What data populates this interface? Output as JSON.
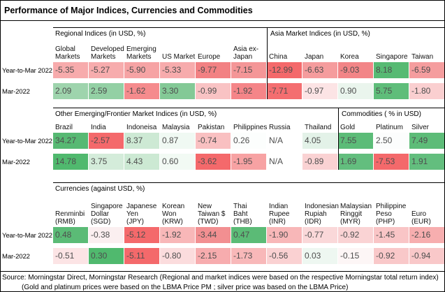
{
  "title": "Performance of Major Indices, Currencies and Commodities",
  "row_labels": {
    "ytd": "Year-to-Mar 2022",
    "mar": "Mar-2022"
  },
  "heatmap_palette": {
    "strong_negative": "#F4696B",
    "neutral": "#FCFCFF",
    "strong_positive": "#57B973"
  },
  "chart_data": [
    {
      "type": "heatmap",
      "left_title": "Regional Indices (in USD, %)",
      "right_title": "Asia Market Indices (in USD, %)",
      "divider_before_column": 6,
      "columns": [
        "Global\nMarkets",
        "Developed\nMarkets",
        "Emerging\nMarkets",
        "US Market",
        "Europe",
        "Asia ex-\nJapan",
        "China",
        "Japan",
        "Korea",
        "Singapore",
        "Taiwan"
      ],
      "rows": [
        {
          "label": "Year-to-Mar 2022",
          "values": [
            -5.35,
            -5.27,
            -5.9,
            -5.33,
            -9.77,
            -7.15,
            -12.99,
            -6.63,
            -9.03,
            8.18,
            -6.59
          ],
          "colors": [
            "#F7ABAC",
            "#F7ACAD",
            "#F6A3A4",
            "#F7ABAC",
            "#F28183",
            "#F49697",
            "#F4696B",
            "#F59C9D",
            "#F28587",
            "#57BA73",
            "#F59D9E"
          ]
        },
        {
          "label": "Mar-2022",
          "values": [
            2.09,
            2.59,
            -1.62,
            3.3,
            -0.99,
            -1.92,
            -7.71,
            -0.97,
            0.9,
            5.75,
            -1.8
          ],
          "colors": [
            "#9ED4AD",
            "#93D0A4",
            "#F58B8D",
            "#83C996",
            "#F9C3C4",
            "#F58588",
            "#F46E70",
            "#FCE4E5",
            "#EAF5ED",
            "#5FBD7A",
            "#FACFD0"
          ]
        }
      ]
    },
    {
      "type": "heatmap",
      "left_title": "Other Emerging/Frontier Market Indices (in USD, %)",
      "right_title": "Commodities ( % in USD)",
      "divider_before_column": 8,
      "columns": [
        "Brazil",
        "India",
        "Indoneisa",
        "Malaysia",
        "Pakistan",
        "Philippines",
        "Russia",
        "Thailand",
        "Gold",
        "Platinum",
        "Silver"
      ],
      "rows": [
        {
          "label": "Year-to-Mar 2022",
          "values": [
            34.27,
            -2.57,
            8.37,
            0.87,
            -0.74,
            0.26,
            null,
            4.05,
            7.55,
            2.5,
            7.49
          ],
          "colors": [
            "#57B973",
            "#F4696B",
            "#CDE9D4",
            "#F0F9F3",
            "#F9C0C1",
            "#FCFEFD",
            "#FFFFFF",
            "#E3F2E8",
            "#5CBC78",
            "#FCFDFD",
            "#5DBC78"
          ]
        },
        {
          "label": "Mar-2022",
          "values": [
            14.78,
            3.75,
            4.43,
            0.6,
            -3.62,
            -1.95,
            null,
            -0.89,
            1.69,
            -7.53,
            1.91
          ],
          "colors": [
            "#50B96E",
            "#D4ECDA",
            "#CCE9D3",
            "#F2FAF4",
            "#F4696B",
            "#F7A2A3",
            "#FFFFFF",
            "#FAD2D3",
            "#63BE7E",
            "#F4696B",
            "#63BE7E"
          ]
        }
      ]
    },
    {
      "type": "heatmap",
      "left_title": "Currencies (against USD, %)",
      "right_title": null,
      "divider_before_column": null,
      "columns": [
        "Renminbi\n(RMB)",
        "Singapore\nDollar\n(SGD)",
        "Japanese\nYen\n(JPY)",
        "Korean\nWon\n(KRW)",
        "New\nTaiwan $\n(TWD)",
        "Thai\nBaht\n(THB)",
        "Indian\nRupee\n(INR)",
        "Indonesian\nRupiah\n(IDR)",
        "Malaysian\nRinggit\n(MYR)",
        "Philippine\nPeso\n(PHP)",
        "Euro\n(EUR)"
      ],
      "rows": [
        {
          "label": "Year-to-Mar 2022",
          "values": [
            0.48,
            -0.38,
            -5.12,
            -1.92,
            -3.44,
            0.47,
            -1.9,
            -0.77,
            -0.92,
            -1.45,
            -2.16
          ],
          "colors": [
            "#5BBB76",
            "#FBEFF0",
            "#F4696B",
            "#F8B7B8",
            "#F28F91",
            "#5BBB76",
            "#F8B7B8",
            "#FAD8D9",
            "#FAD3D4",
            "#F9C5C6",
            "#F7AEAF"
          ]
        },
        {
          "label": "Mar-2022",
          "values": [
            -0.51,
            0.3,
            -5.11,
            -0.8,
            -2.15,
            -1.73,
            -0.56,
            0.03,
            -0.15,
            -0.92,
            -0.94
          ],
          "colors": [
            "#FCE4E5",
            "#50B96E",
            "#F4696B",
            "#FBDCDD",
            "#F7ACAE",
            "#F8B8B9",
            "#FAD1D2",
            "#EEF7F1",
            "#FDF6F6",
            "#F9C8C9",
            "#F9C8C9"
          ]
        }
      ]
    }
  ],
  "footer": {
    "line1": "Source: Morningstar Direct, Morningstar Research (Regional and market indices were based on the respective Morningstar total return index)",
    "line2": "(Gold and platinum prices were based on the LBMA Price PM ; silver price was based on the LBMA Price)"
  }
}
